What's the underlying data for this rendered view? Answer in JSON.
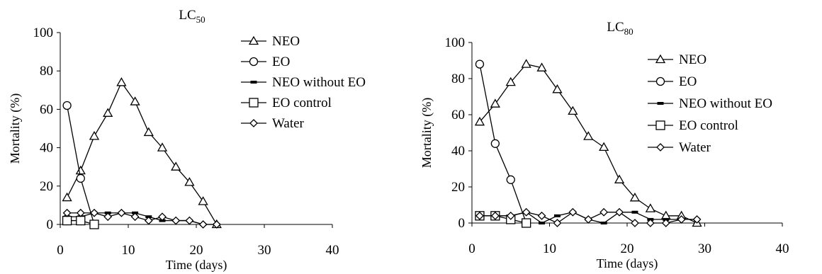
{
  "chart_data": [
    {
      "type": "line",
      "title": "LC",
      "title_subscript": "50",
      "xlabel": "Time (days)",
      "ylabel": "Mortality (%)",
      "xlim": [
        0,
        40
      ],
      "ylim": [
        0,
        100
      ],
      "xticks": [
        0,
        10,
        20,
        30,
        40
      ],
      "yticks": [
        0,
        20,
        40,
        60,
        80,
        100
      ],
      "grid": false,
      "legend_position": "top-right",
      "series": [
        {
          "name": "NEO",
          "marker": "triangle",
          "x": [
            1,
            3,
            5,
            7,
            9,
            11,
            13,
            15,
            17,
            19,
            21,
            23
          ],
          "y": [
            14,
            28,
            46,
            58,
            74,
            64,
            48,
            40,
            30,
            22,
            12,
            0
          ]
        },
        {
          "name": "EO",
          "marker": "circle",
          "x": [
            1,
            3,
            5
          ],
          "y": [
            62,
            24,
            0
          ]
        },
        {
          "name": "NEO without EO",
          "marker": "dash",
          "x": [
            1,
            3,
            5,
            7,
            9,
            11,
            13,
            15,
            17,
            19,
            21,
            23
          ],
          "y": [
            4,
            4,
            6,
            6,
            6,
            6,
            4,
            2,
            2,
            2,
            0,
            0
          ]
        },
        {
          "name": "EO control",
          "marker": "square",
          "x": [
            1,
            3,
            5
          ],
          "y": [
            2,
            2,
            0
          ]
        },
        {
          "name": "Water",
          "marker": "diamond",
          "x": [
            1,
            3,
            5,
            7,
            9,
            11,
            13,
            15,
            17,
            19,
            21,
            23
          ],
          "y": [
            6,
            6,
            6,
            4,
            6,
            4,
            2,
            4,
            2,
            2,
            0,
            0
          ]
        }
      ]
    },
    {
      "type": "line",
      "title": "LC",
      "title_subscript": "80",
      "xlabel": "Time (days)",
      "ylabel": "Mortality (%)",
      "xlim": [
        0,
        40
      ],
      "ylim": [
        0,
        100
      ],
      "xticks": [
        0,
        10,
        20,
        30,
        40
      ],
      "yticks": [
        0,
        20,
        40,
        60,
        80,
        100
      ],
      "grid": false,
      "legend_position": "top-right",
      "series": [
        {
          "name": "NEO",
          "marker": "triangle",
          "x": [
            1,
            3,
            5,
            7,
            9,
            11,
            13,
            15,
            17,
            19,
            21,
            23,
            25,
            27,
            29
          ],
          "y": [
            56,
            66,
            78,
            88,
            86,
            74,
            62,
            48,
            42,
            24,
            14,
            8,
            4,
            4,
            0
          ]
        },
        {
          "name": "EO",
          "marker": "circle",
          "x": [
            1,
            3,
            5,
            7
          ],
          "y": [
            88,
            44,
            24,
            0
          ]
        },
        {
          "name": "NEO without EO",
          "marker": "dash",
          "x": [
            1,
            3,
            5,
            7,
            9,
            11,
            13,
            15,
            17,
            19,
            21,
            23,
            25,
            27,
            29
          ],
          "y": [
            4,
            4,
            4,
            6,
            0,
            4,
            6,
            2,
            0,
            6,
            6,
            2,
            2,
            2,
            2
          ]
        },
        {
          "name": "EO control",
          "marker": "square",
          "x": [
            1,
            3,
            5,
            7
          ],
          "y": [
            4,
            4,
            2,
            0
          ]
        },
        {
          "name": "Water",
          "marker": "diamond",
          "x": [
            1,
            3,
            5,
            7,
            9,
            11,
            13,
            15,
            17,
            19,
            21,
            23,
            25,
            27,
            29
          ],
          "y": [
            4,
            4,
            4,
            6,
            4,
            0,
            6,
            2,
            6,
            6,
            0,
            0,
            0,
            2,
            2
          ]
        }
      ]
    }
  ]
}
